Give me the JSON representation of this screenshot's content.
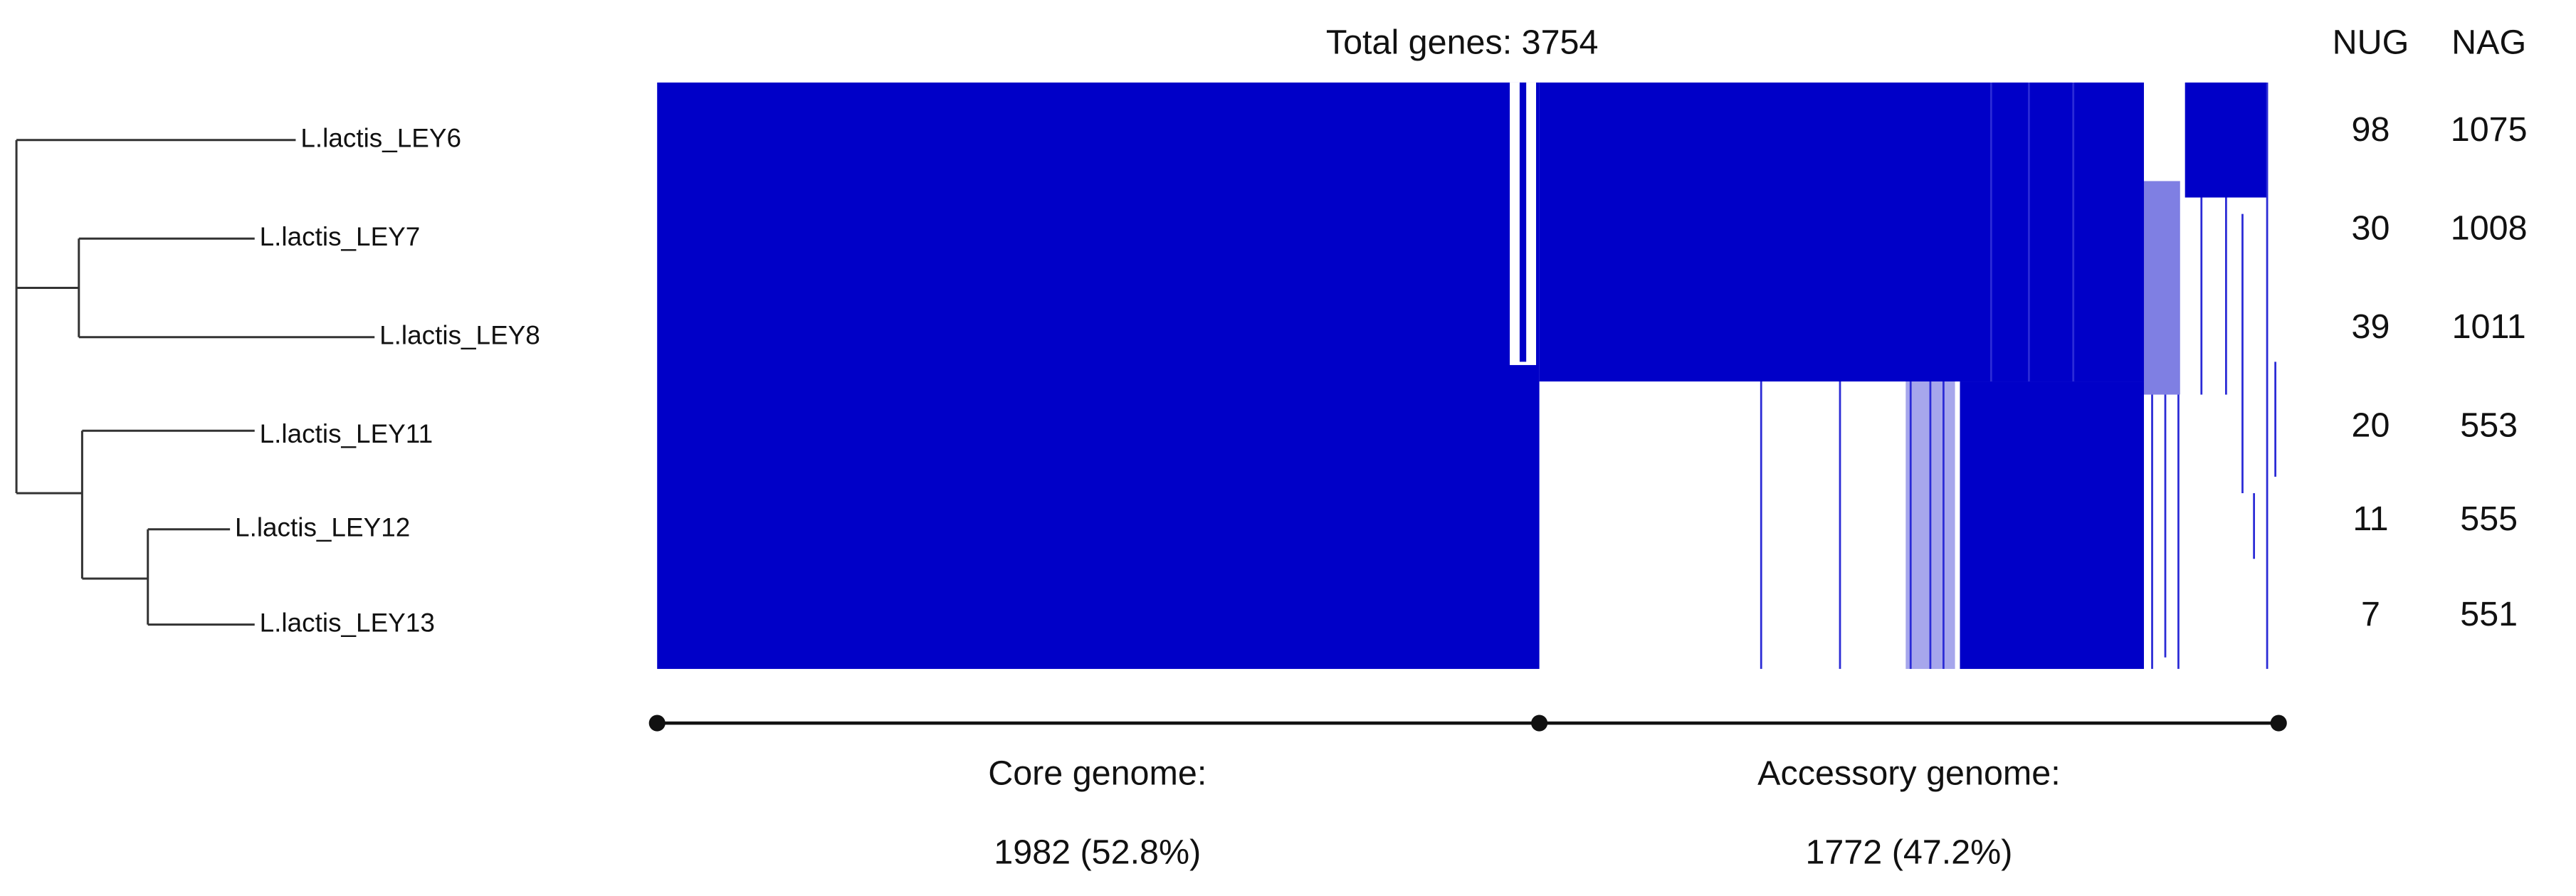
{
  "header": {
    "title": "Total genes: 3754"
  },
  "columns": [
    "NUG",
    "NAG"
  ],
  "strains": [
    {
      "name": "L.lactis_LEY6",
      "nug": "98",
      "nag": "1075"
    },
    {
      "name": "L.lactis_LEY7",
      "nug": "30",
      "nag": "1008"
    },
    {
      "name": "L.lactis_LEY8",
      "nug": "39",
      "nag": "1011"
    },
    {
      "name": "L.lactis_LEY11",
      "nug": "20",
      "nag": "553"
    },
    {
      "name": "L.lactis_LEY12",
      "nug": "11",
      "nag": "555"
    },
    {
      "name": "L.lactis_LEY13",
      "nug": "7",
      "nag": "551"
    }
  ],
  "footer": {
    "core": {
      "label": "Core genome:",
      "value": "1982 (52.8%)"
    },
    "accessory": {
      "label": "Accessory genome:",
      "value": "1772 (47.2%)"
    }
  }
}
